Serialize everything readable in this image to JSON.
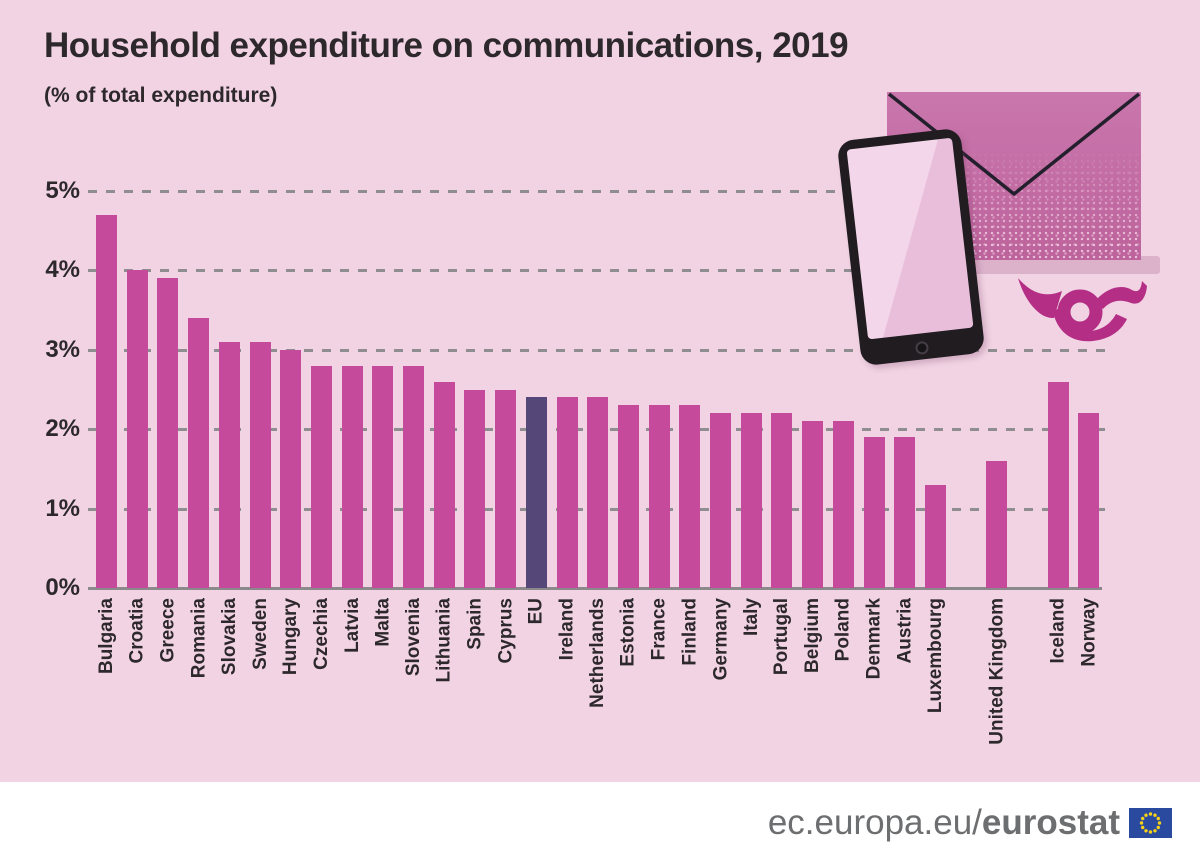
{
  "title": "Household expenditure on communications, 2019",
  "subtitle": "(% of total expenditure)",
  "y_axis": {
    "tick_labels": [
      "0%",
      "1%",
      "2%",
      "3%",
      "4%",
      "5%"
    ]
  },
  "chart_data": {
    "type": "bar",
    "title": "Household expenditure on communications, 2019",
    "ylabel": "% of total expenditure",
    "ylim": [
      0,
      5
    ],
    "grid": "horizontal-dashed",
    "legend": "none",
    "categories": [
      "Bulgaria",
      "Croatia",
      "Greece",
      "Romania",
      "Slovakia",
      "Sweden",
      "Hungary",
      "Czechia",
      "Latvia",
      "Malta",
      "Slovenia",
      "Lithuania",
      "Spain",
      "Cyprus",
      "EU",
      "Ireland",
      "Netherlands",
      "Estonia",
      "France",
      "Finland",
      "Germany",
      "Italy",
      "Portugal",
      "Belgium",
      "Poland",
      "Denmark",
      "Austria",
      "Luxembourg",
      "United Kingdom",
      "Iceland",
      "Norway"
    ],
    "values": [
      4.7,
      4.0,
      3.9,
      3.4,
      3.1,
      3.1,
      3.0,
      2.8,
      2.8,
      2.8,
      2.8,
      2.6,
      2.5,
      2.5,
      2.4,
      2.4,
      2.4,
      2.3,
      2.3,
      2.3,
      2.2,
      2.2,
      2.2,
      2.1,
      2.1,
      1.9,
      1.9,
      1.3,
      1.6,
      2.6,
      2.2
    ],
    "highlight_category": "EU",
    "gaps_after": [
      "Luxembourg",
      "United Kingdom"
    ]
  },
  "decor": {
    "icons": [
      "tablet-icon",
      "envelope-icon",
      "post-horn-icon"
    ]
  },
  "footer": {
    "url_prefix": "ec.europa.eu/",
    "url_brand": "eurostat",
    "flag": "eu-flag-icon"
  },
  "colors": {
    "background": "#f1d3e3",
    "bar": "#c64a9c",
    "bar_highlight": "#554878",
    "grid": "#8f8d90",
    "axis_text": "#2d282b",
    "footer_text": "#6c6e70",
    "flag_blue": "#2a4a9f",
    "flag_stars": "#f7d117",
    "envelope_pink": "#c977ad",
    "post_horn": "#b52e86"
  }
}
